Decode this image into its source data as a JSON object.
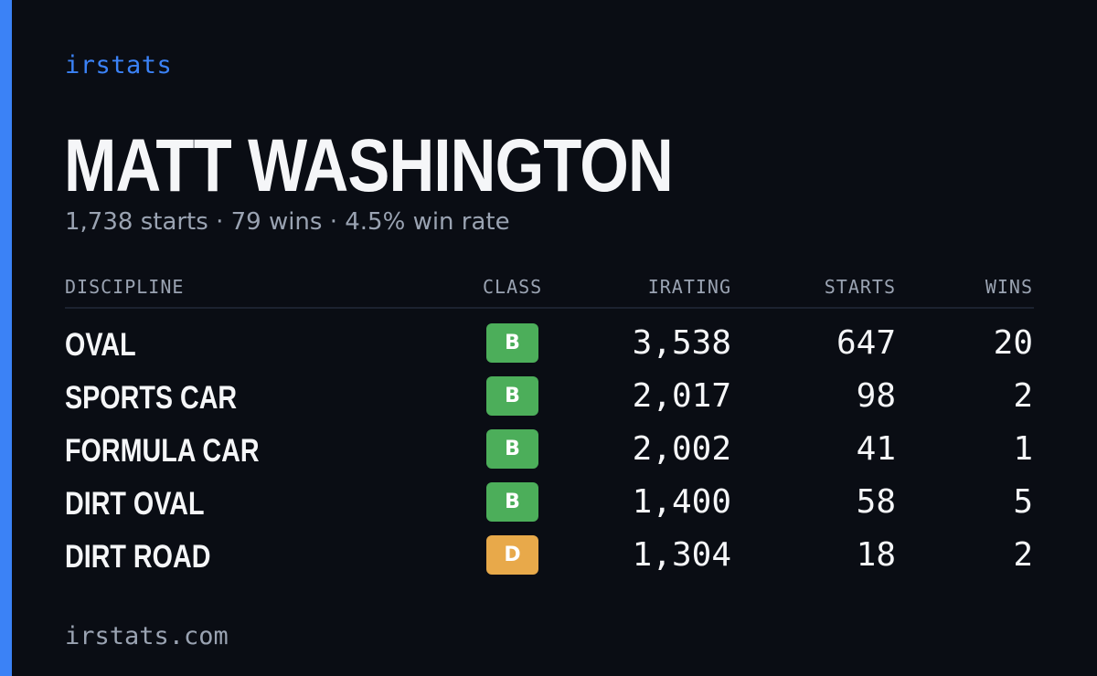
{
  "brand": "irstats",
  "player_name": "MATT WASHINGTON",
  "summary": "1,738 starts · 79 wins · 4.5% win rate",
  "table": {
    "headers": {
      "discipline": "DISCIPLINE",
      "class": "CLASS",
      "irating": "IRATING",
      "starts": "STARTS",
      "wins": "WINS"
    },
    "rows": [
      {
        "discipline": "OVAL",
        "class": "B",
        "class_color": "#4cae5a",
        "irating": "3,538",
        "starts": "647",
        "wins": "20"
      },
      {
        "discipline": "SPORTS CAR",
        "class": "B",
        "class_color": "#4cae5a",
        "irating": "2,017",
        "starts": "98",
        "wins": "2"
      },
      {
        "discipline": "FORMULA CAR",
        "class": "B",
        "class_color": "#4cae5a",
        "irating": "2,002",
        "starts": "41",
        "wins": "1"
      },
      {
        "discipline": "DIRT OVAL",
        "class": "B",
        "class_color": "#4cae5a",
        "irating": "1,400",
        "starts": "58",
        "wins": "5"
      },
      {
        "discipline": "DIRT ROAD",
        "class": "D",
        "class_color": "#e8a94a",
        "irating": "1,304",
        "starts": "18",
        "wins": "2"
      }
    ]
  },
  "footer": "irstats.com",
  "colors": {
    "accent": "#3b82f6",
    "background": "#0a0d14",
    "muted_text": "#9aa3b2",
    "class_b": "#4cae5a",
    "class_d": "#e8a94a"
  }
}
